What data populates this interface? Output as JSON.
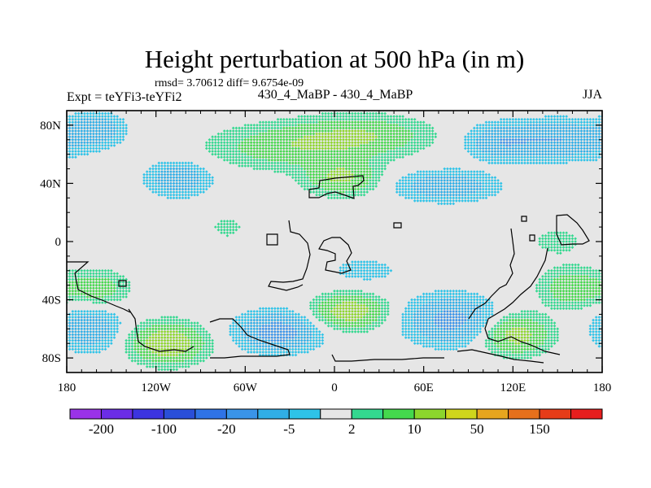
{
  "chart_data": {
    "type": "heatmap",
    "title": "Height perturbation at 500 hPa (in m)",
    "stats_line": "rmsd= 3.70612 diff= 9.6754e-09",
    "left_label": "Expt = teYFi3-teYFi2",
    "center_label": "430_4_MaBP - 430_4_MaBP",
    "right_label": "JJA",
    "xlim": [
      -180,
      180
    ],
    "ylim": [
      -90,
      90
    ],
    "x_ticks": [
      {
        "value": -180,
        "label": "180"
      },
      {
        "value": -120,
        "label": "120W"
      },
      {
        "value": -60,
        "label": "60W"
      },
      {
        "value": 0,
        "label": "0"
      },
      {
        "value": 60,
        "label": "60E"
      },
      {
        "value": 120,
        "label": "120E"
      },
      {
        "value": 180,
        "label": "180"
      }
    ],
    "y_ticks": [
      {
        "value": 80,
        "label": "80N"
      },
      {
        "value": 40,
        "label": "40N"
      },
      {
        "value": 0,
        "label": "0"
      },
      {
        "value": -40,
        "label": "40S"
      },
      {
        "value": -80,
        "label": "80S"
      }
    ],
    "levels": [
      -200,
      -150,
      -100,
      -50,
      -20,
      -10,
      -5,
      -2,
      2,
      5,
      10,
      20,
      50,
      100,
      150,
      200
    ],
    "colorbar_colors": [
      "#9a32e8",
      "#6b2de6",
      "#3c34e0",
      "#2a4fd8",
      "#2f73e6",
      "#3a94e8",
      "#30aee6",
      "#2ec3e8",
      "#e6e6e6",
      "#33d88f",
      "#44d84d",
      "#8cd62c",
      "#cfd51c",
      "#e6a51f",
      "#e6701b",
      "#e63c18",
      "#e61e1e"
    ],
    "colorbar_labels": [
      {
        "after_level": -200,
        "label": "-200"
      },
      {
        "after_level": -100,
        "label": "-100"
      },
      {
        "after_level": -20,
        "label": "-20"
      },
      {
        "after_level": -5,
        "label": "-5"
      },
      {
        "after_level": 2,
        "label": "2"
      },
      {
        "after_level": 10,
        "label": "10"
      },
      {
        "after_level": 50,
        "label": "50"
      },
      {
        "after_level": 150,
        "label": "150"
      }
    ],
    "anomaly_centers": [
      {
        "lon": -160,
        "lat": 78,
        "amp": -8,
        "sx": 12,
        "sy": 7
      },
      {
        "lon": -105,
        "lat": 43,
        "amp": -9,
        "sx": 14,
        "sy": 8
      },
      {
        "lon": -30,
        "lat": 65,
        "amp": 8,
        "sx": 35,
        "sy": 10
      },
      {
        "lon": 18,
        "lat": 73,
        "amp": 9,
        "sx": 30,
        "sy": 9
      },
      {
        "lon": 5,
        "lat": 44,
        "amp": 11,
        "sx": 16,
        "sy": 8
      },
      {
        "lon": 75,
        "lat": 38,
        "amp": -9,
        "sx": 22,
        "sy": 7
      },
      {
        "lon": 150,
        "lat": 70,
        "amp": -10,
        "sx": 30,
        "sy": 9
      },
      {
        "lon": 110,
        "lat": 68,
        "amp": -6,
        "sx": 14,
        "sy": 8
      },
      {
        "lon": -112,
        "lat": -70,
        "amp": 16,
        "sx": 16,
        "sy": 9
      },
      {
        "lon": -160,
        "lat": -32,
        "amp": 8,
        "sx": 14,
        "sy": 8
      },
      {
        "lon": -165,
        "lat": -60,
        "amp": -9,
        "sx": 14,
        "sy": 10
      },
      {
        "lon": -38,
        "lat": -62,
        "amp": -13,
        "sx": 18,
        "sy": 9
      },
      {
        "lon": 10,
        "lat": -48,
        "amp": 14,
        "sx": 16,
        "sy": 8
      },
      {
        "lon": 78,
        "lat": -54,
        "amp": -12,
        "sx": 20,
        "sy": 11
      },
      {
        "lon": 122,
        "lat": -64,
        "amp": 13,
        "sx": 15,
        "sy": 9
      },
      {
        "lon": 160,
        "lat": -32,
        "amp": 9,
        "sx": 14,
        "sy": 9
      },
      {
        "lon": -72,
        "lat": 10,
        "amp": 2.5,
        "sx": 12,
        "sy": 9
      },
      {
        "lon": 20,
        "lat": -20,
        "amp": -3,
        "sx": 20,
        "sy": 8
      },
      {
        "lon": 150,
        "lat": 0,
        "amp": 3,
        "sx": 14,
        "sy": 8
      }
    ]
  }
}
